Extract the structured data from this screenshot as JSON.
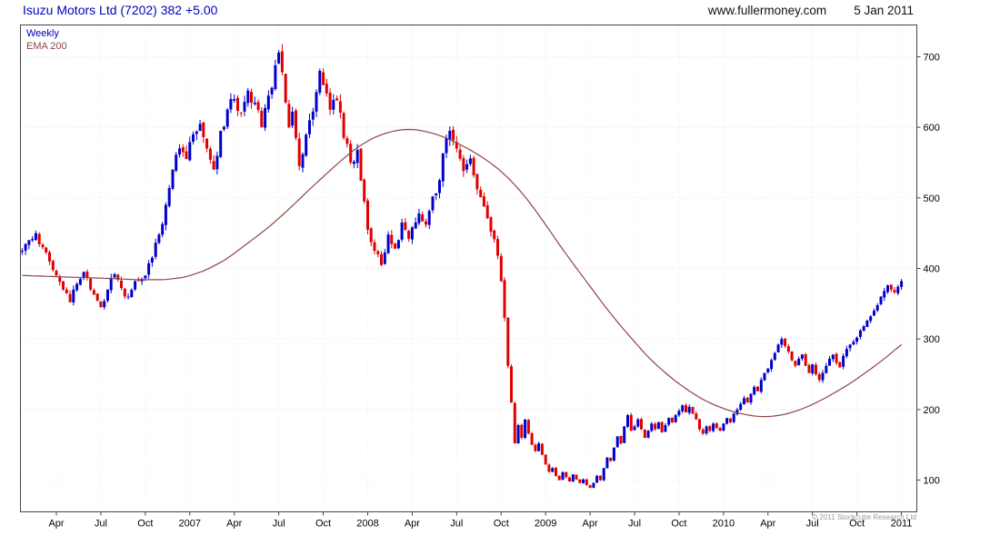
{
  "header": {
    "title": "Isuzu Motors Ltd (7202) 382 +5.00",
    "website": "www.fullermoney.com",
    "date": "5 Jan 2011"
  },
  "legend": {
    "series1": "Weekly",
    "series2": "EMA 200"
  },
  "footer": {
    "copyright": "© 2011 Stockcube Research Ltd"
  },
  "colors": {
    "title": "#0000C0",
    "up": "#0000CC",
    "down": "#E00000",
    "ema": "#8F4444",
    "grid_h": "#E8DCDC",
    "grid_v": "#EEE6E6",
    "axis": "#444444"
  },
  "chart_data": {
    "type": "candlestick",
    "instrument": "Isuzu Motors Ltd (7202)",
    "interval": "Weekly",
    "overlay": "EMA 200",
    "last_price": 382,
    "change": "+5.00",
    "ylim": [
      55,
      745
    ],
    "yticks": [
      100,
      200,
      300,
      400,
      500,
      600,
      700
    ],
    "weeks_total": 262,
    "x_axis_labels": [
      {
        "label": "Apr",
        "week": 10
      },
      {
        "label": "Jul",
        "week": 23
      },
      {
        "label": "Oct",
        "week": 36
      },
      {
        "label": "2007",
        "week": 49
      },
      {
        "label": "Apr",
        "week": 62
      },
      {
        "label": "Jul",
        "week": 75
      },
      {
        "label": "Oct",
        "week": 88
      },
      {
        "label": "2008",
        "week": 101
      },
      {
        "label": "Apr",
        "week": 114
      },
      {
        "label": "Jul",
        "week": 127
      },
      {
        "label": "Oct",
        "week": 140
      },
      {
        "label": "2009",
        "week": 153
      },
      {
        "label": "Apr",
        "week": 166
      },
      {
        "label": "Jul",
        "week": 179
      },
      {
        "label": "Oct",
        "week": 192
      },
      {
        "label": "2010",
        "week": 205
      },
      {
        "label": "Apr",
        "week": 218
      },
      {
        "label": "Jul",
        "week": 231
      },
      {
        "label": "Oct",
        "week": 244
      },
      {
        "label": "2011",
        "week": 257
      }
    ],
    "price_close_anchors": [
      [
        0,
        425
      ],
      [
        2,
        440
      ],
      [
        4,
        450
      ],
      [
        6,
        430
      ],
      [
        8,
        410
      ],
      [
        10,
        390
      ],
      [
        12,
        370
      ],
      [
        14,
        352
      ],
      [
        16,
        378
      ],
      [
        18,
        395
      ],
      [
        20,
        370
      ],
      [
        23,
        345
      ],
      [
        25,
        370
      ],
      [
        27,
        392
      ],
      [
        29,
        372
      ],
      [
        31,
        360
      ],
      [
        33,
        382
      ],
      [
        36,
        390
      ],
      [
        38,
        415
      ],
      [
        40,
        448
      ],
      [
        42,
        490
      ],
      [
        44,
        540
      ],
      [
        46,
        570
      ],
      [
        48,
        555
      ],
      [
        50,
        590
      ],
      [
        52,
        605
      ],
      [
        54,
        570
      ],
      [
        56,
        540
      ],
      [
        58,
        595
      ],
      [
        60,
        625
      ],
      [
        62,
        640
      ],
      [
        64,
        620
      ],
      [
        66,
        652
      ],
      [
        68,
        635
      ],
      [
        70,
        600
      ],
      [
        72,
        645
      ],
      [
        74,
        688
      ],
      [
        75,
        706
      ],
      [
        76,
        678
      ],
      [
        77,
        635
      ],
      [
        78,
        600
      ],
      [
        79,
        622
      ],
      [
        80,
        585
      ],
      [
        81,
        545
      ],
      [
        82,
        562
      ],
      [
        84,
        610
      ],
      [
        86,
        650
      ],
      [
        87,
        680
      ],
      [
        88,
        660
      ],
      [
        90,
        625
      ],
      [
        92,
        638
      ],
      [
        94,
        585
      ],
      [
        96,
        550
      ],
      [
        98,
        568
      ],
      [
        100,
        495
      ],
      [
        101,
        455
      ],
      [
        103,
        425
      ],
      [
        105,
        405
      ],
      [
        107,
        448
      ],
      [
        109,
        428
      ],
      [
        111,
        465
      ],
      [
        113,
        442
      ],
      [
        114,
        458
      ],
      [
        116,
        478
      ],
      [
        118,
        462
      ],
      [
        120,
        502
      ],
      [
        122,
        525
      ],
      [
        124,
        585
      ],
      [
        125,
        595
      ],
      [
        127,
        570
      ],
      [
        129,
        538
      ],
      [
        131,
        556
      ],
      [
        133,
        512
      ],
      [
        135,
        488
      ],
      [
        137,
        452
      ],
      [
        139,
        418
      ],
      [
        140,
        382
      ],
      [
        141,
        330
      ],
      [
        142,
        262
      ],
      [
        143,
        210
      ],
      [
        144,
        152
      ],
      [
        145,
        178
      ],
      [
        146,
        160
      ],
      [
        147,
        186
      ],
      [
        148,
        166
      ],
      [
        149,
        150
      ],
      [
        150,
        141
      ],
      [
        151,
        152
      ],
      [
        152,
        136
      ],
      [
        153,
        122
      ],
      [
        154,
        112
      ],
      [
        155,
        117
      ],
      [
        156,
        106
      ],
      [
        157,
        100
      ],
      [
        158,
        111
      ],
      [
        159,
        104
      ],
      [
        160,
        98
      ],
      [
        161,
        108
      ],
      [
        162,
        101
      ],
      [
        163,
        96
      ],
      [
        164,
        101
      ],
      [
        165,
        93
      ],
      [
        166,
        89
      ],
      [
        167,
        96
      ],
      [
        168,
        106
      ],
      [
        169,
        100
      ],
      [
        170,
        117
      ],
      [
        171,
        132
      ],
      [
        172,
        127
      ],
      [
        173,
        146
      ],
      [
        174,
        162
      ],
      [
        175,
        152
      ],
      [
        176,
        176
      ],
      [
        177,
        192
      ],
      [
        178,
        170
      ],
      [
        179,
        176
      ],
      [
        180,
        186
      ],
      [
        181,
        172
      ],
      [
        182,
        160
      ],
      [
        183,
        170
      ],
      [
        184,
        180
      ],
      [
        185,
        172
      ],
      [
        186,
        182
      ],
      [
        187,
        168
      ],
      [
        188,
        178
      ],
      [
        189,
        188
      ],
      [
        190,
        182
      ],
      [
        191,
        192
      ],
      [
        192,
        198
      ],
      [
        193,
        206
      ],
      [
        194,
        196
      ],
      [
        195,
        204
      ],
      [
        196,
        194
      ],
      [
        197,
        186
      ],
      [
        198,
        172
      ],
      [
        199,
        166
      ],
      [
        200,
        176
      ],
      [
        201,
        170
      ],
      [
        202,
        180
      ],
      [
        203,
        174
      ],
      [
        204,
        170
      ],
      [
        205,
        180
      ],
      [
        206,
        188
      ],
      [
        207,
        182
      ],
      [
        208,
        194
      ],
      [
        209,
        200
      ],
      [
        210,
        208
      ],
      [
        211,
        216
      ],
      [
        212,
        210
      ],
      [
        213,
        222
      ],
      [
        214,
        232
      ],
      [
        215,
        226
      ],
      [
        216,
        242
      ],
      [
        217,
        252
      ],
      [
        218,
        258
      ],
      [
        219,
        270
      ],
      [
        220,
        280
      ],
      [
        221,
        292
      ],
      [
        222,
        300
      ],
      [
        223,
        290
      ],
      [
        224,
        282
      ],
      [
        225,
        270
      ],
      [
        226,
        262
      ],
      [
        227,
        272
      ],
      [
        228,
        278
      ],
      [
        229,
        262
      ],
      [
        230,
        252
      ],
      [
        231,
        264
      ],
      [
        232,
        250
      ],
      [
        233,
        242
      ],
      [
        234,
        252
      ],
      [
        235,
        262
      ],
      [
        236,
        272
      ],
      [
        237,
        278
      ],
      [
        238,
        266
      ],
      [
        239,
        260
      ],
      [
        240,
        276
      ],
      [
        241,
        286
      ],
      [
        242,
        292
      ],
      [
        243,
        296
      ],
      [
        244,
        302
      ],
      [
        245,
        312
      ],
      [
        246,
        318
      ],
      [
        247,
        326
      ],
      [
        248,
        332
      ],
      [
        249,
        340
      ],
      [
        250,
        348
      ],
      [
        251,
        360
      ],
      [
        252,
        368
      ],
      [
        253,
        376
      ],
      [
        254,
        370
      ],
      [
        255,
        366
      ],
      [
        256,
        374
      ],
      [
        257,
        382
      ]
    ],
    "ema200_anchors": [
      [
        0,
        390
      ],
      [
        12,
        388
      ],
      [
        24,
        386
      ],
      [
        34,
        384
      ],
      [
        42,
        384
      ],
      [
        48,
        388
      ],
      [
        54,
        398
      ],
      [
        60,
        414
      ],
      [
        66,
        436
      ],
      [
        72,
        458
      ],
      [
        78,
        484
      ],
      [
        84,
        512
      ],
      [
        88,
        530
      ],
      [
        93,
        552
      ],
      [
        98,
        572
      ],
      [
        103,
        586
      ],
      [
        107,
        593
      ],
      [
        111,
        597
      ],
      [
        115,
        597
      ],
      [
        119,
        593
      ],
      [
        123,
        587
      ],
      [
        127,
        578
      ],
      [
        131,
        568
      ],
      [
        135,
        556
      ],
      [
        139,
        542
      ],
      [
        143,
        524
      ],
      [
        147,
        502
      ],
      [
        151,
        476
      ],
      [
        155,
        448
      ],
      [
        159,
        420
      ],
      [
        163,
        394
      ],
      [
        167,
        368
      ],
      [
        171,
        342
      ],
      [
        175,
        318
      ],
      [
        179,
        296
      ],
      [
        183,
        274
      ],
      [
        187,
        256
      ],
      [
        191,
        240
      ],
      [
        195,
        226
      ],
      [
        199,
        214
      ],
      [
        203,
        205
      ],
      [
        207,
        198
      ],
      [
        211,
        193
      ],
      [
        215,
        190
      ],
      [
        219,
        190
      ],
      [
        223,
        193
      ],
      [
        227,
        199
      ],
      [
        231,
        207
      ],
      [
        235,
        217
      ],
      [
        239,
        228
      ],
      [
        243,
        240
      ],
      [
        247,
        254
      ],
      [
        251,
        268
      ],
      [
        254,
        280
      ],
      [
        257,
        292
      ]
    ]
  }
}
